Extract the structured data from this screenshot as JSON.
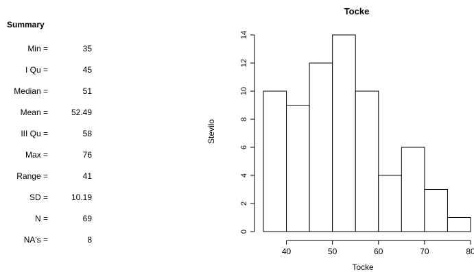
{
  "summary": {
    "title": "Summary",
    "rows": [
      {
        "label": "Min =",
        "value": "35"
      },
      {
        "label": "I Qu =",
        "value": "45"
      },
      {
        "label": "Median =",
        "value": "51"
      },
      {
        "label": "Mean =",
        "value": "52.49"
      },
      {
        "label": "III Qu =",
        "value": "58"
      },
      {
        "label": "Max =",
        "value": "76"
      },
      {
        "label": "Range =",
        "value": "41"
      },
      {
        "label": "SD =",
        "value": "10.19"
      },
      {
        "label": "N =",
        "value": "69"
      },
      {
        "label": "NA's =",
        "value": "8"
      }
    ]
  },
  "chart_data": {
    "type": "bar",
    "title": "Tocke",
    "xlabel": "Tocke",
    "ylabel": "Stevilo",
    "bins": [
      {
        "from": 35,
        "to": 40,
        "count": 10
      },
      {
        "from": 40,
        "to": 45,
        "count": 9
      },
      {
        "from": 45,
        "to": 50,
        "count": 12
      },
      {
        "from": 50,
        "to": 55,
        "count": 14
      },
      {
        "from": 55,
        "to": 60,
        "count": 10
      },
      {
        "from": 60,
        "to": 65,
        "count": 4
      },
      {
        "from": 65,
        "to": 70,
        "count": 6
      },
      {
        "from": 70,
        "to": 75,
        "count": 3
      },
      {
        "from": 75,
        "to": 80,
        "count": 1
      }
    ],
    "xticks": [
      "40",
      "50",
      "60",
      "70",
      "80"
    ],
    "yticks": [
      "0",
      "2",
      "4",
      "6",
      "8",
      "10",
      "12",
      "14"
    ],
    "xlim": [
      35,
      80
    ],
    "ylim": [
      0,
      14
    ],
    "grid": false,
    "bar_fill": "#ffffff",
    "bar_stroke": "#000000"
  }
}
